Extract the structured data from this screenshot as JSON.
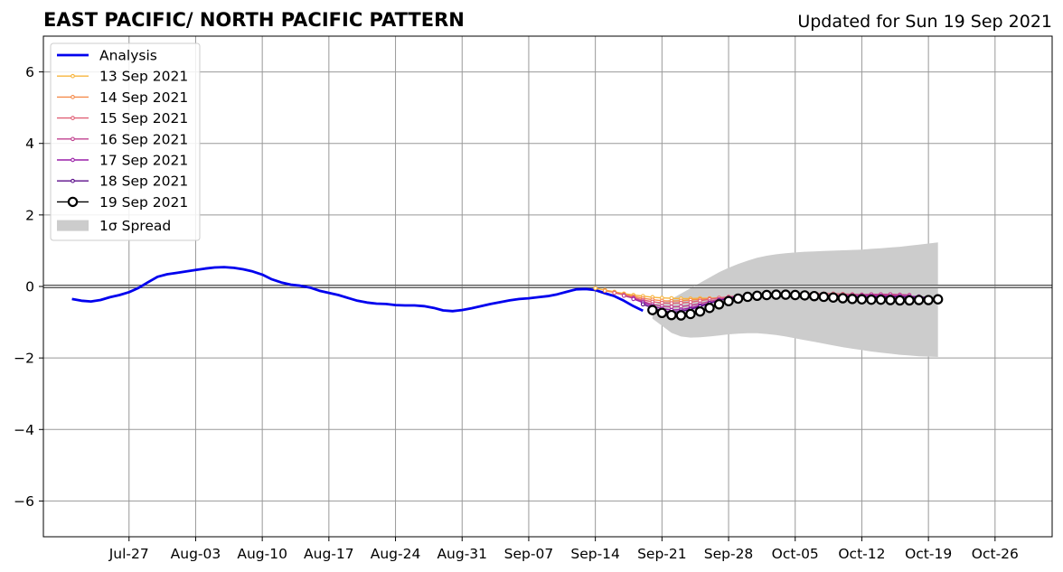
{
  "chart_data": {
    "type": "line",
    "title": "EAST PACIFIC/ NORTH PACIFIC PATTERN",
    "subtitle": "Updated for Sun 19 Sep 2021",
    "xlabel": "",
    "ylabel": "",
    "xlim": [
      "2021-07-18",
      "2021-11-01"
    ],
    "ylim": [
      -7,
      7
    ],
    "x_ticks": [
      "2021-07-27",
      "2021-08-03",
      "2021-08-10",
      "2021-08-17",
      "2021-08-24",
      "2021-08-31",
      "2021-09-07",
      "2021-09-14",
      "2021-09-21",
      "2021-09-28",
      "2021-10-05",
      "2021-10-12",
      "2021-10-19",
      "2021-10-26"
    ],
    "x_tick_labels": [
      "Jul-27",
      "Aug-03",
      "Aug-10",
      "Aug-17",
      "Aug-24",
      "Aug-31",
      "Sep-07",
      "Sep-14",
      "Sep-21",
      "Sep-28",
      "Oct-05",
      "Oct-12",
      "Oct-19",
      "Oct-26"
    ],
    "y_ticks": [
      -6,
      -4,
      -2,
      0,
      2,
      4,
      6
    ],
    "y_tick_labels": [
      "−6",
      "−4",
      "−2",
      "0",
      "2",
      "4",
      "6"
    ],
    "grid": true,
    "zero_line": true,
    "legend_position": "top-left",
    "analysis": {
      "name": "Analysis",
      "color": "#0000ee",
      "start": "2021-07-21",
      "values": [
        -0.35,
        -0.4,
        -0.42,
        -0.38,
        -0.3,
        -0.24,
        -0.16,
        -0.04,
        0.12,
        0.27,
        0.34,
        0.38,
        0.42,
        0.46,
        0.5,
        0.53,
        0.54,
        0.52,
        0.48,
        0.42,
        0.33,
        0.2,
        0.11,
        0.05,
        0.02,
        -0.03,
        -0.12,
        -0.18,
        -0.24,
        -0.32,
        -0.4,
        -0.45,
        -0.48,
        -0.49,
        -0.52,
        -0.53,
        -0.53,
        -0.55,
        -0.6,
        -0.67,
        -0.69,
        -0.66,
        -0.61,
        -0.55,
        -0.49,
        -0.44,
        -0.39,
        -0.35,
        -0.33,
        -0.3,
        -0.27,
        -0.22,
        -0.15,
        -0.08,
        -0.07,
        -0.1,
        -0.19,
        -0.27,
        -0.4,
        -0.55,
        -0.68
      ]
    },
    "forecasts": [
      {
        "name": "13 Sep 2021",
        "color": "#f7b43c",
        "start": "2021-09-14",
        "values": [
          -0.05,
          -0.1,
          -0.15,
          -0.2,
          -0.24,
          -0.27,
          -0.3,
          -0.32,
          -0.33,
          -0.34,
          -0.34,
          -0.33,
          -0.33,
          -0.32,
          -0.31,
          -0.3,
          -0.29
        ]
      },
      {
        "name": "14 Sep 2021",
        "color": "#f58b4b",
        "start": "2021-09-15",
        "values": [
          -0.12,
          -0.17,
          -0.22,
          -0.28,
          -0.33,
          -0.37,
          -0.4,
          -0.41,
          -0.4,
          -0.38,
          -0.36,
          -0.34,
          -0.32,
          -0.3,
          -0.29,
          -0.28,
          -0.27
        ]
      },
      {
        "name": "15 Sep 2021",
        "color": "#e06076",
        "start": "2021-09-16",
        "values": [
          -0.18,
          -0.24,
          -0.31,
          -0.38,
          -0.43,
          -0.46,
          -0.47,
          -0.46,
          -0.44,
          -0.4,
          -0.36,
          -0.32,
          -0.29,
          -0.27,
          -0.26,
          -0.25,
          -0.24,
          -0.23,
          -0.22,
          -0.21,
          -0.2,
          -0.2,
          -0.2,
          -0.2,
          -0.21,
          -0.22,
          -0.23,
          -0.24,
          -0.24,
          -0.24,
          -0.24
        ]
      },
      {
        "name": "16 Sep 2021",
        "color": "#c0418f",
        "start": "2021-09-17",
        "values": [
          -0.26,
          -0.33,
          -0.42,
          -0.5,
          -0.55,
          -0.57,
          -0.56,
          -0.53,
          -0.48,
          -0.42,
          -0.36,
          -0.31,
          -0.28,
          -0.26,
          -0.24,
          -0.23,
          -0.22,
          -0.22,
          -0.23,
          -0.24,
          -0.25,
          -0.25,
          -0.25,
          -0.24,
          -0.23,
          -0.23,
          -0.22,
          -0.22,
          -0.22,
          -0.23,
          -0.24
        ]
      },
      {
        "name": "17 Sep 2021",
        "color": "#9a1fa8",
        "start": "2021-09-18",
        "values": [
          -0.35,
          -0.45,
          -0.55,
          -0.62,
          -0.66,
          -0.65,
          -0.6,
          -0.53,
          -0.46,
          -0.39,
          -0.33,
          -0.29,
          -0.26,
          -0.24,
          -0.23,
          -0.22,
          -0.22,
          -0.23,
          -0.24,
          -0.25,
          -0.26,
          -0.27,
          -0.27,
          -0.27,
          -0.26,
          -0.26,
          -0.26,
          -0.27,
          -0.27,
          -0.28,
          -0.28
        ]
      },
      {
        "name": "18 Sep 2021",
        "color": "#5b0d8a",
        "start": "2021-09-19",
        "values": [
          -0.5,
          -0.6,
          -0.68,
          -0.72,
          -0.7,
          -0.64,
          -0.56,
          -0.47,
          -0.39,
          -0.33,
          -0.28,
          -0.25,
          -0.23,
          -0.22,
          -0.22,
          -0.23,
          -0.24,
          -0.26,
          -0.27,
          -0.28,
          -0.29,
          -0.3,
          -0.3,
          -0.3,
          -0.3,
          -0.29,
          -0.29,
          -0.29,
          -0.3,
          -0.3,
          -0.3
        ]
      },
      {
        "name": "19 Sep 2021",
        "color": "#000000",
        "start": "2021-09-20",
        "values": [
          -0.66,
          -0.74,
          -0.8,
          -0.81,
          -0.77,
          -0.7,
          -0.6,
          -0.5,
          -0.41,
          -0.34,
          -0.29,
          -0.26,
          -0.24,
          -0.23,
          -0.23,
          -0.24,
          -0.25,
          -0.27,
          -0.29,
          -0.31,
          -0.33,
          -0.35,
          -0.36,
          -0.37,
          -0.37,
          -0.38,
          -0.39,
          -0.39,
          -0.38,
          -0.38,
          -0.36
        ]
      }
    ],
    "spread": {
      "name": "1σ Spread",
      "color": "#cccccc",
      "start": "2021-09-20",
      "upper": [
        -0.5,
        -0.45,
        -0.35,
        -0.2,
        -0.05,
        0.1,
        0.25,
        0.4,
        0.52,
        0.63,
        0.72,
        0.8,
        0.86,
        0.9,
        0.93,
        0.95,
        0.97,
        0.98,
        0.99,
        1.0,
        1.01,
        1.02,
        1.03,
        1.05,
        1.07,
        1.09,
        1.11,
        1.14,
        1.17,
        1.2,
        1.23
      ],
      "lower": [
        -0.9,
        -1.1,
        -1.3,
        -1.4,
        -1.43,
        -1.42,
        -1.4,
        -1.37,
        -1.34,
        -1.32,
        -1.31,
        -1.31,
        -1.33,
        -1.36,
        -1.4,
        -1.45,
        -1.5,
        -1.55,
        -1.6,
        -1.65,
        -1.7,
        -1.74,
        -1.78,
        -1.82,
        -1.85,
        -1.88,
        -1.91,
        -1.93,
        -1.95,
        -1.96,
        -1.97
      ]
    }
  }
}
